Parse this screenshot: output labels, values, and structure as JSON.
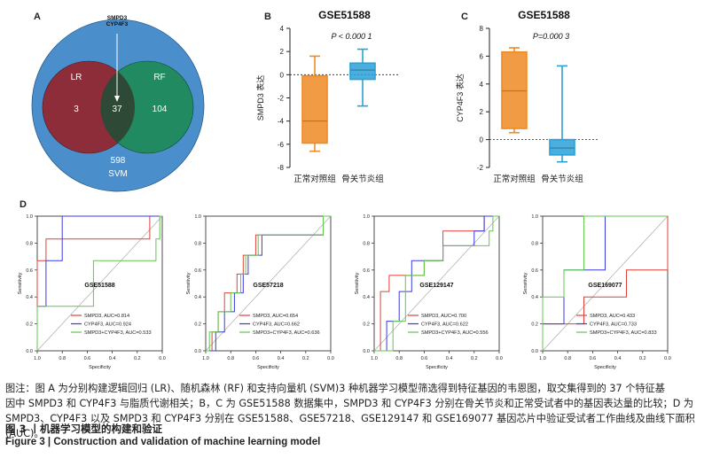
{
  "panels": {
    "A": {
      "letter": "A",
      "venn": {
        "outer_label": "SVM",
        "outer_value": "598",
        "left_label": "LR",
        "left_value": "3",
        "right_label": "RF",
        "right_value": "104",
        "center_value": "37",
        "arrow_label_1": "SMPD3",
        "arrow_label_2": "CYP4F3",
        "colors": {
          "outer": "#4a8fcb",
          "left": "#8e2d3a",
          "right": "#1f8a5a",
          "center": "#2e4a36"
        }
      }
    },
    "B": {
      "letter": "B",
      "title": "GSE51588",
      "ylabel": "SMPD3 表达",
      "pvalue": "P < 0.000 1"
    },
    "C": {
      "letter": "C",
      "title": "GSE51588",
      "ylabel": "CYP4F3 表达",
      "pvalue": "P=0.000 3"
    },
    "D": {
      "letter": "D"
    }
  },
  "chart_data": [
    {
      "id": "B",
      "type": "box",
      "title": "GSE51588",
      "ylabel": "SMPD3 表达",
      "ylim": [
        -8,
        4
      ],
      "yticks": [
        -8,
        -6,
        -4,
        -2,
        0,
        2,
        4
      ],
      "categories": [
        "正常对照组",
        "骨关节炎组"
      ],
      "boxes": [
        {
          "name": "正常对照组",
          "min": -6.6,
          "q1": -5.9,
          "median": -4.0,
          "q3": -0.1,
          "max": 1.6,
          "color": "#f08a24"
        },
        {
          "name": "骨关节炎组",
          "min": -2.7,
          "q1": -0.4,
          "median": 0.4,
          "q3": 1.0,
          "max": 2.2,
          "color": "#2aa0d8"
        }
      ],
      "pvalue": "P < 0.000 1"
    },
    {
      "id": "C",
      "type": "box",
      "title": "GSE51588",
      "ylabel": "CYP4F3 表达",
      "ylim": [
        -2,
        8
      ],
      "yticks": [
        -2,
        0,
        2,
        4,
        6,
        8
      ],
      "categories": [
        "正常对照组",
        "骨关节炎组"
      ],
      "boxes": [
        {
          "name": "正常对照组",
          "min": 0.5,
          "q1": 0.8,
          "median": 3.5,
          "q3": 6.3,
          "max": 6.6,
          "color": "#f08a24"
        },
        {
          "name": "骨关节炎组",
          "min": -1.6,
          "q1": -1.1,
          "median": -0.6,
          "q3": 0.0,
          "max": 5.3,
          "color": "#2aa0d8"
        }
      ],
      "pvalue": "P=0.000 3"
    },
    {
      "id": "D1",
      "type": "line",
      "title": "GSE51588",
      "xlabel": "Specificity",
      "ylabel": "Sensitivity",
      "xticks": [
        "1.0",
        "0.8",
        "0.6",
        "0.4",
        "0.2",
        "0.0"
      ],
      "yticks": [
        "0.0",
        "0.2",
        "0.4",
        "0.6",
        "0.8",
        "1.0"
      ],
      "series": [
        {
          "name": "SMPD3, AUC=0.814",
          "color": "#e0403a",
          "points": [
            [
              1.0,
              0.0
            ],
            [
              1.0,
              0.67
            ],
            [
              0.93,
              0.67
            ],
            [
              0.93,
              0.83
            ],
            [
              0.1,
              0.83
            ],
            [
              0.1,
              1.0
            ],
            [
              0.0,
              1.0
            ]
          ]
        },
        {
          "name": "CYP4F3, AUC=0.924",
          "color": "#3a3ae0",
          "points": [
            [
              1.0,
              0.0
            ],
            [
              1.0,
              0.33
            ],
            [
              0.93,
              0.33
            ],
            [
              0.93,
              0.67
            ],
            [
              0.8,
              0.67
            ],
            [
              0.8,
              1.0
            ],
            [
              0.0,
              1.0
            ]
          ]
        },
        {
          "name": "SMPD3+CYP4F3, AUC=0.533",
          "color": "#5ec94a",
          "points": [
            [
              1.0,
              0.0
            ],
            [
              1.0,
              0.33
            ],
            [
              0.55,
              0.33
            ],
            [
              0.55,
              0.67
            ],
            [
              0.1,
              0.67
            ],
            [
              0.05,
              0.67
            ],
            [
              0.05,
              0.83
            ],
            [
              0.02,
              0.83
            ],
            [
              0.02,
              1.0
            ],
            [
              0.0,
              1.0
            ]
          ]
        }
      ]
    },
    {
      "id": "D2",
      "type": "line",
      "title": "GSE57218",
      "xlabel": "Specificity",
      "ylabel": "Sensitivity",
      "xticks": [
        "1.0",
        "0.8",
        "0.6",
        "0.4",
        "0.2",
        "0.0"
      ],
      "yticks": [
        "0.0",
        "0.2",
        "0.4",
        "0.6",
        "0.8",
        "1.0"
      ],
      "series": [
        {
          "name": "SMPD3, AUC=0.654",
          "color": "#e0403a",
          "points": [
            [
              1.0,
              0.0
            ],
            [
              0.95,
              0.0
            ],
            [
              0.95,
              0.14
            ],
            [
              0.9,
              0.14
            ],
            [
              0.9,
              0.29
            ],
            [
              0.85,
              0.29
            ],
            [
              0.85,
              0.43
            ],
            [
              0.75,
              0.43
            ],
            [
              0.75,
              0.57
            ],
            [
              0.7,
              0.57
            ],
            [
              0.7,
              0.71
            ],
            [
              0.6,
              0.71
            ],
            [
              0.6,
              0.86
            ],
            [
              0.06,
              0.86
            ],
            [
              0.06,
              1.0
            ],
            [
              0.0,
              1.0
            ]
          ]
        },
        {
          "name": "CYP4F3, AUC=0.662",
          "color": "#3a3ae0",
          "points": [
            [
              1.0,
              0.0
            ],
            [
              0.92,
              0.0
            ],
            [
              0.92,
              0.14
            ],
            [
              0.85,
              0.14
            ],
            [
              0.85,
              0.29
            ],
            [
              0.77,
              0.29
            ],
            [
              0.77,
              0.43
            ],
            [
              0.7,
              0.43
            ],
            [
              0.7,
              0.57
            ],
            [
              0.66,
              0.57
            ],
            [
              0.66,
              0.71
            ],
            [
              0.55,
              0.71
            ],
            [
              0.55,
              0.86
            ],
            [
              0.06,
              0.86
            ],
            [
              0.06,
              1.0
            ],
            [
              0.0,
              1.0
            ]
          ]
        },
        {
          "name": "SMPD3+CYP4F3, AUC=0.636",
          "color": "#5ec94a",
          "points": [
            [
              1.0,
              0.0
            ],
            [
              0.97,
              0.0
            ],
            [
              0.97,
              0.14
            ],
            [
              0.9,
              0.14
            ],
            [
              0.9,
              0.29
            ],
            [
              0.8,
              0.29
            ],
            [
              0.8,
              0.43
            ],
            [
              0.72,
              0.43
            ],
            [
              0.72,
              0.57
            ],
            [
              0.68,
              0.57
            ],
            [
              0.68,
              0.71
            ],
            [
              0.58,
              0.71
            ],
            [
              0.58,
              0.86
            ],
            [
              0.06,
              0.86
            ],
            [
              0.06,
              1.0
            ],
            [
              0.0,
              1.0
            ]
          ]
        }
      ]
    },
    {
      "id": "D3",
      "type": "line",
      "title": "GSE129147",
      "xlabel": "Specificity",
      "ylabel": "Sensitivity",
      "xticks": [
        "1.0",
        "0.8",
        "0.6",
        "0.4",
        "0.2",
        "0.0"
      ],
      "yticks": [
        "0.0",
        "0.2",
        "0.4",
        "0.6",
        "0.8",
        "1.0"
      ],
      "series": [
        {
          "name": "SMPD3, AUC=0.700",
          "color": "#e0403a",
          "points": [
            [
              1.0,
              0.0
            ],
            [
              0.95,
              0.0
            ],
            [
              0.95,
              0.44
            ],
            [
              0.88,
              0.44
            ],
            [
              0.88,
              0.56
            ],
            [
              0.6,
              0.56
            ],
            [
              0.6,
              0.67
            ],
            [
              0.45,
              0.67
            ],
            [
              0.45,
              0.89
            ],
            [
              0.12,
              0.89
            ],
            [
              0.12,
              1.0
            ],
            [
              0.0,
              1.0
            ]
          ]
        },
        {
          "name": "CYP4F3, AUC=0.622",
          "color": "#3a3ae0",
          "points": [
            [
              1.0,
              0.0
            ],
            [
              0.9,
              0.0
            ],
            [
              0.9,
              0.22
            ],
            [
              0.8,
              0.22
            ],
            [
              0.8,
              0.44
            ],
            [
              0.7,
              0.44
            ],
            [
              0.7,
              0.67
            ],
            [
              0.45,
              0.67
            ],
            [
              0.45,
              0.78
            ],
            [
              0.2,
              0.78
            ],
            [
              0.2,
              0.89
            ],
            [
              0.12,
              0.89
            ],
            [
              0.12,
              1.0
            ],
            [
              0.0,
              1.0
            ]
          ]
        },
        {
          "name": "SMPD3+CYP4F3, AUC=0.556",
          "color": "#5ec94a",
          "points": [
            [
              1.0,
              0.0
            ],
            [
              0.85,
              0.0
            ],
            [
              0.85,
              0.22
            ],
            [
              0.75,
              0.22
            ],
            [
              0.75,
              0.56
            ],
            [
              0.6,
              0.56
            ],
            [
              0.6,
              0.67
            ],
            [
              0.45,
              0.67
            ],
            [
              0.45,
              0.78
            ],
            [
              0.08,
              0.78
            ],
            [
              0.08,
              0.89
            ],
            [
              0.05,
              0.89
            ],
            [
              0.05,
              1.0
            ],
            [
              0.0,
              1.0
            ]
          ]
        }
      ]
    },
    {
      "id": "D4",
      "type": "line",
      "title": "GSE169077",
      "xlabel": "Specificity",
      "ylabel": "Sensitivity",
      "xticks": [
        "1.0",
        "0.8",
        "0.6",
        "0.4",
        "0.2",
        "0.0"
      ],
      "yticks": [
        "0.0",
        "0.2",
        "0.4",
        "0.6",
        "0.8",
        "1.0"
      ],
      "series": [
        {
          "name": "SMPD3, AUC=0.433",
          "color": "#e0403a",
          "points": [
            [
              1.0,
              0.0
            ],
            [
              1.0,
              0.2
            ],
            [
              0.67,
              0.2
            ],
            [
              0.67,
              0.4
            ],
            [
              0.33,
              0.4
            ],
            [
              0.33,
              0.6
            ],
            [
              0.0,
              0.6
            ],
            [
              0.0,
              0.8
            ],
            [
              0.0,
              1.0
            ]
          ]
        },
        {
          "name": "CYP4F3, AUC=0.733",
          "color": "#3a3ae0",
          "points": [
            [
              1.0,
              0.0
            ],
            [
              1.0,
              0.2
            ],
            [
              0.83,
              0.2
            ],
            [
              0.83,
              0.6
            ],
            [
              0.5,
              0.6
            ],
            [
              0.5,
              1.0
            ],
            [
              0.0,
              1.0
            ]
          ]
        },
        {
          "name": "SMPD3+CYP4F3, AUC=0.833",
          "color": "#5ec94a",
          "points": [
            [
              1.0,
              0.0
            ],
            [
              1.0,
              0.4
            ],
            [
              0.83,
              0.4
            ],
            [
              0.83,
              0.6
            ],
            [
              0.67,
              0.6
            ],
            [
              0.67,
              1.0
            ],
            [
              0.0,
              1.0
            ]
          ]
        }
      ]
    }
  ],
  "caption": {
    "line1": "图注：图 A 为分别构建逻辑回归 (LR)、随机森林 (RF) 和支持向量机 (SVM)3 种机器学习模型筛选得到特征基因的韦恩图，取交集得到的 37 个特征基",
    "line2": "因中 SMPD3 和 CYP4F3 与脂质代谢相关；B，C 为 GSE51588 数据集中，SMPD3 和 CYP4F3 分别在骨关节炎和正常受试者中的基因表达量的比较；D 为",
    "line3": "SMPD3、CYP4F3 以及 SMPD3 和 CYP4F3 分别在 GSE51588、GSE57218、GSE129147 和 GSE169077 基因芯片中验证受试者工作曲线及曲线下面积 (AUC)。",
    "title_cn": "图 3 丨机器学习模型的构建和验证",
    "title_en": "Figure 3  |  Construction and validation of machine learning model"
  }
}
